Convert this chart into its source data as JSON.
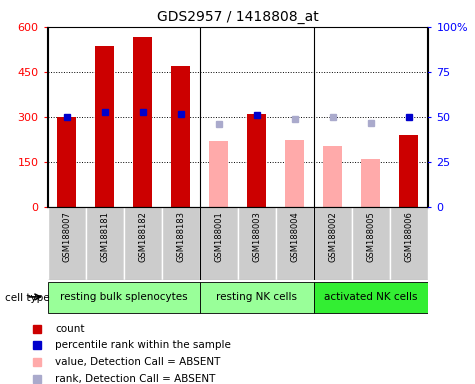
{
  "title": "GDS2957 / 1418808_at",
  "samples": [
    "GSM188007",
    "GSM188181",
    "GSM188182",
    "GSM188183",
    "GSM188001",
    "GSM188003",
    "GSM188004",
    "GSM188002",
    "GSM188005",
    "GSM188006"
  ],
  "count_present": [
    300,
    535,
    565,
    470,
    null,
    310,
    null,
    null,
    null,
    240
  ],
  "count_absent": [
    null,
    null,
    null,
    null,
    220,
    null,
    225,
    205,
    160,
    null
  ],
  "percentile_present": [
    50,
    53,
    53,
    52,
    null,
    51,
    null,
    null,
    null,
    50
  ],
  "rank_absent": [
    null,
    null,
    null,
    null,
    46,
    null,
    49,
    50,
    47,
    null
  ],
  "ylim_left": [
    0,
    600
  ],
  "ylim_right": [
    0,
    100
  ],
  "yticks_left": [
    0,
    150,
    300,
    450,
    600
  ],
  "ytick_labels_left": [
    "0",
    "150",
    "300",
    "450",
    "600"
  ],
  "yticks_right": [
    0,
    25,
    50,
    75,
    100
  ],
  "ytick_labels_right": [
    "0",
    "25",
    "50",
    "75",
    "100%"
  ],
  "color_count_present": "#cc0000",
  "color_count_absent": "#ffaaaa",
  "color_rank_present": "#0000cc",
  "color_rank_absent": "#aaaacc",
  "bg_color_samples": "#cccccc",
  "bg_color_group_light": "#99ff99",
  "bg_color_group_dark": "#33ee33",
  "group_defs": [
    {
      "start": 0,
      "end": 3,
      "label": "resting bulk splenocytes",
      "dark": false
    },
    {
      "start": 4,
      "end": 6,
      "label": "resting NK cells",
      "dark": false
    },
    {
      "start": 7,
      "end": 9,
      "label": "activated NK cells",
      "dark": true
    }
  ],
  "legend_items": [
    {
      "color": "#cc0000",
      "label": "count"
    },
    {
      "color": "#0000cc",
      "label": "percentile rank within the sample"
    },
    {
      "color": "#ffaaaa",
      "label": "value, Detection Call = ABSENT"
    },
    {
      "color": "#aaaacc",
      "label": "rank, Detection Call = ABSENT"
    }
  ]
}
